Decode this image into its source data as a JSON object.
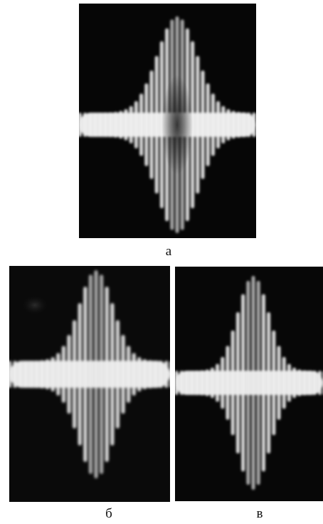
{
  "figure": {
    "panels": [
      {
        "id": "a",
        "label": "а",
        "description_icon": "oscillogram-wave-packet-photo"
      },
      {
        "id": "b",
        "label": "б",
        "description_icon": "oscillogram-wave-packet-photo"
      },
      {
        "id": "c",
        "label": "в",
        "description_icon": "oscillogram-wave-packet-photo"
      }
    ],
    "colors": {
      "background": "#050505",
      "trace": "#f2f2f2",
      "page": "#ffffff"
    }
  }
}
